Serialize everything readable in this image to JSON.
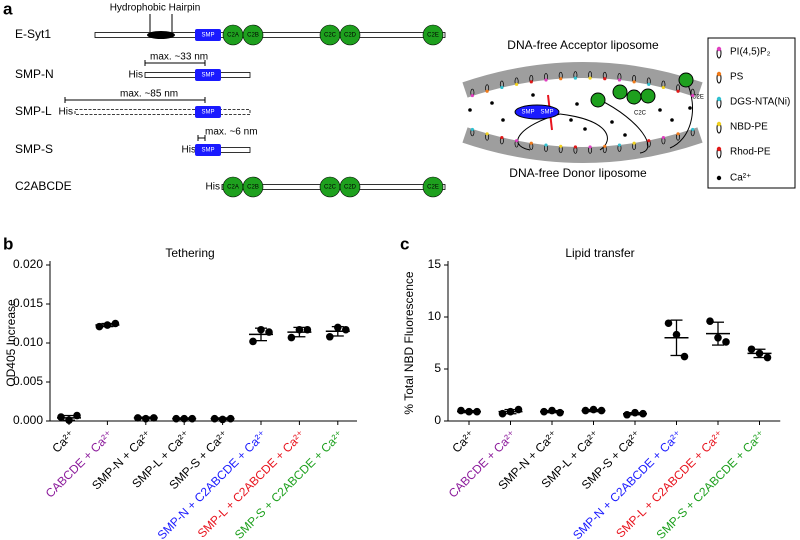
{
  "panel_labels": [
    "a",
    "b",
    "c"
  ],
  "diagram": {
    "hairpin_label": "Hydrophobic Hairpin",
    "constructs": [
      {
        "name": "E-Syt1",
        "domains": [
          "SMP",
          "C2A",
          "C2B",
          "C2C",
          "C2D",
          "C2E"
        ]
      },
      {
        "name": "SMP-N",
        "tag": "His",
        "span": "max. ~33 nm",
        "domains": [
          "SMP"
        ]
      },
      {
        "name": "SMP-L",
        "tag": "His",
        "span": "max. ~85 nm",
        "domains": [
          "SMP"
        ]
      },
      {
        "name": "SMP-S",
        "tag": "His",
        "span": "max. ~6 nm",
        "domains": [
          "SMP"
        ]
      },
      {
        "name": "C2ABCDE",
        "tag": "His",
        "domains": [
          "C2A",
          "C2B",
          "C2C",
          "C2D",
          "C2E"
        ]
      }
    ],
    "acceptor": "DNA-free Acceptor liposome",
    "donor": "DNA-free Donor liposome",
    "complex_labels": [
      "SMP",
      "SMP",
      "C2C",
      "C2E"
    ],
    "legend": [
      "PI(4,5)P₂",
      "PS",
      "DGS-NTA(Ni)",
      "NBD-PE",
      "Rhod-PE",
      "Ca²⁺"
    ]
  },
  "chart_data": [
    {
      "type": "dot",
      "title": "Tethering",
      "y_label": "OD405 Increase",
      "categories": [
        "Ca²⁺",
        "CABCDE + Ca²⁺",
        "SMP-N + Ca²⁺",
        "SMP-L + Ca²⁺",
        "SMP-S + Ca²⁺",
        "SMP-N + C2ABCDE + Ca²⁺",
        "SMP-L + C2ABCDE + Ca²⁺",
        "SMP-S + C2ABCDE + Ca²⁺"
      ],
      "category_colors": [
        "#000000",
        "#8b1a9b",
        "#000000",
        "#000000",
        "#000000",
        "#1a1aff",
        "#e8141e",
        "#1ea01e"
      ],
      "points": [
        [
          0.0005,
          0.0001,
          0.0007
        ],
        [
          0.0121,
          0.0123,
          0.0125
        ],
        [
          0.0004,
          0.0003,
          0.0004
        ],
        [
          0.0003,
          0.0003,
          0.0003
        ],
        [
          0.0003,
          0.0002,
          0.0003
        ],
        [
          0.0102,
          0.0117,
          0.0114
        ],
        [
          0.0107,
          0.0117,
          0.0117
        ],
        [
          0.0108,
          0.012,
          0.0117
        ]
      ],
      "means": [
        0.0004,
        0.0123,
        0.0004,
        0.0003,
        0.0003,
        0.0111,
        0.0114,
        0.0115
      ],
      "errors": [
        0.0003,
        0.0002,
        0.0001,
        0.0001,
        0.0001,
        0.0008,
        0.0006,
        0.0006
      ],
      "ylim": [
        0,
        0.02
      ],
      "yticks": [
        {
          "value": 0,
          "label": "0.000"
        },
        {
          "value": 0.005,
          "label": "0.005"
        },
        {
          "value": 0.01,
          "label": "0.010"
        },
        {
          "value": 0.015,
          "label": "0.015"
        },
        {
          "value": 0.02,
          "label": "0.020"
        }
      ],
      "color": "#000000"
    },
    {
      "type": "dot",
      "title": "Lipid transfer",
      "y_label": "% Total NBD Fluorescence",
      "categories": [
        "Ca²⁺",
        "CABCDE + Ca²⁺",
        "SMP-N + Ca²⁺",
        "SMP-L + Ca²⁺",
        "SMP-S + Ca²⁺",
        "SMP-N + C2ABCDE + Ca²⁺",
        "SMP-L + C2ABCDE + Ca²⁺",
        "SMP-S + C2ABCDE + Ca²⁺"
      ],
      "category_colors": [
        "#000000",
        "#8b1a9b",
        "#000000",
        "#000000",
        "#000000",
        "#1a1aff",
        "#e8141e",
        "#1ea01e"
      ],
      "points": [
        [
          1.0,
          0.9,
          0.9
        ],
        [
          0.7,
          0.9,
          1.1
        ],
        [
          0.9,
          1.0,
          0.8
        ],
        [
          1.0,
          1.1,
          1.0
        ],
        [
          0.6,
          0.8,
          0.7
        ],
        [
          9.4,
          8.3,
          6.2
        ],
        [
          9.6,
          8.0,
          7.6
        ],
        [
          6.9,
          6.5,
          6.1
        ]
      ],
      "means": [
        0.9,
        0.9,
        0.9,
        1.0,
        0.7,
        8.0,
        8.4,
        6.5
      ],
      "errors": [
        0.1,
        0.2,
        0.1,
        0.1,
        0.1,
        1.7,
        1.1,
        0.4
      ],
      "ylim": [
        0,
        15
      ],
      "yticks": [
        0,
        5,
        10,
        15
      ],
      "color": "#000000"
    }
  ]
}
